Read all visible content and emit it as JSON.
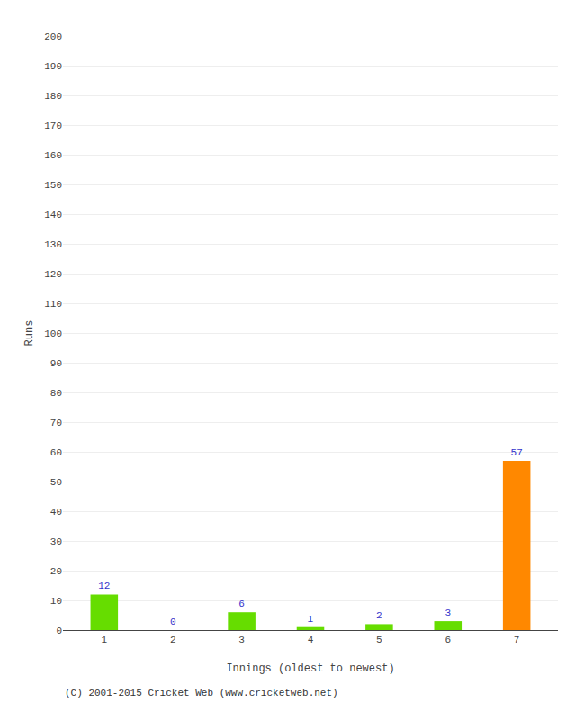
{
  "chart_data": {
    "type": "bar",
    "categories": [
      "1",
      "2",
      "3",
      "4",
      "5",
      "6",
      "7"
    ],
    "values": [
      12,
      0,
      6,
      1,
      2,
      3,
      57
    ],
    "colors": [
      "#66dd00",
      "#66dd00",
      "#66dd00",
      "#66dd00",
      "#66dd00",
      "#66dd00",
      "#ff8800"
    ],
    "xlabel": "Innings (oldest to newest)",
    "ylabel": "Runs",
    "ylim": [
      0,
      200
    ],
    "yticks": [
      0,
      10,
      20,
      30,
      40,
      50,
      60,
      70,
      80,
      90,
      100,
      110,
      120,
      130,
      140,
      150,
      160,
      170,
      180,
      190,
      200
    ],
    "grid": true,
    "data_labels": true,
    "annotations": [
      "(C) 2001-2015 Cricket Web (www.cricketweb.net)"
    ]
  }
}
